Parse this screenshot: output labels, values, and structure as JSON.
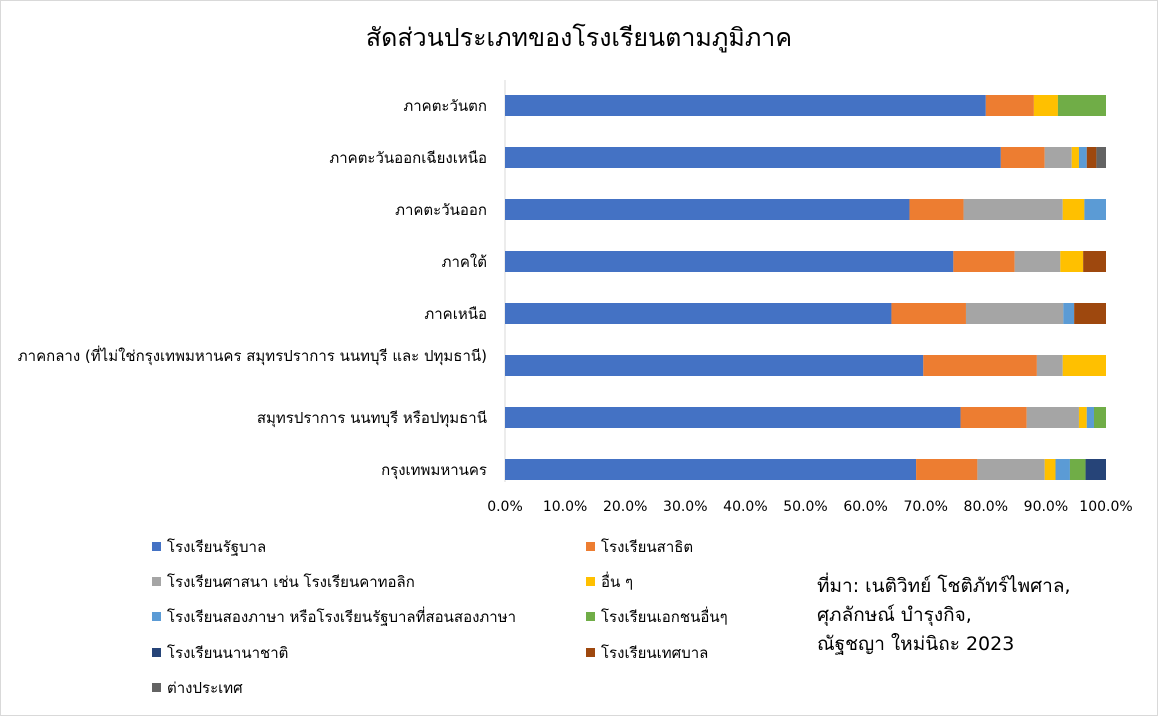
{
  "chart_data": {
    "type": "bar",
    "orientation": "horizontal",
    "stacked": "percent",
    "title": "สัดส่วนประเภทของโรงเรียนตามภูมิภาค",
    "categories": [
      "ภาคตะวันตก",
      "ภาคตะวันออกเฉียงเหนือ",
      "ภาคตะวันออก",
      "ภาคใต้",
      "ภาคเหนือ",
      "ภาคกลาง (ที่ไม่ใช่กรุงเทพมหานคร สมุทรปราการ นนทบุรี และ ปทุมธานี)",
      "สมุทรปราการ นนทบุรี หรือปทุมธานี",
      "กรุงเทพมหานคร"
    ],
    "series": [
      {
        "name": "โรงเรียนรัฐบาล",
        "color": "#4472C4",
        "values": [
          80.0,
          82.5,
          67.3,
          74.6,
          64.3,
          69.6,
          75.8,
          68.4
        ]
      },
      {
        "name": "โรงเรียนสาธิต",
        "color": "#ED7D31",
        "values": [
          8.0,
          7.3,
          9.0,
          10.2,
          12.4,
          18.9,
          11.0,
          10.2
        ]
      },
      {
        "name": "โรงเรียนศาสนา เช่น โรงเรียนคาทอลิก",
        "color": "#A5A5A5",
        "values": [
          0,
          4.5,
          16.5,
          7.6,
          16.2,
          4.3,
          8.7,
          11.2
        ]
      },
      {
        "name": "อื่น ๆ",
        "color": "#FFC000",
        "values": [
          4.0,
          1.2,
          3.6,
          3.8,
          0,
          7.2,
          1.3,
          1.8
        ]
      },
      {
        "name": "โรงเรียนสองภาษา หรือโรงเรียนรัฐบาลที่สอนสองภาษา",
        "color": "#5B9BD5",
        "values": [
          0,
          1.3,
          3.6,
          0,
          1.8,
          0,
          1.2,
          2.4
        ]
      },
      {
        "name": "โรงเรียนเอกชนอื่นๆ",
        "color": "#70AD47",
        "values": [
          8.0,
          0,
          0,
          0,
          0,
          0,
          2.0,
          2.6
        ]
      },
      {
        "name": "โรงเรียนนานาชาติ",
        "color": "#264478",
        "values": [
          0,
          0,
          0,
          0,
          0,
          0,
          0,
          3.4
        ]
      },
      {
        "name": "โรงเรียนเทศบาล",
        "color": "#9E480E",
        "values": [
          0,
          1.6,
          0,
          3.8,
          5.3,
          0,
          0,
          0
        ]
      },
      {
        "name": "ต่างประเทศ",
        "color": "#636363",
        "values": [
          0,
          1.6,
          0,
          0,
          0,
          0,
          0,
          0
        ]
      }
    ],
    "xlim": [
      0,
      100
    ],
    "xticks": [
      "0.0%",
      "10.0%",
      "20.0%",
      "30.0%",
      "40.0%",
      "50.0%",
      "60.0%",
      "70.0%",
      "80.0%",
      "90.0%",
      "100.0%"
    ],
    "grid": false,
    "legend_position": "bottom"
  },
  "source_lines": [
    "ที่มา: เนติวิทย์ โชติภัทร์ไพศาล,",
    "ศุภลักษณ์ บำรุงกิจ,",
    "ณัฐชญา ใหม่นิถะ 2023"
  ]
}
